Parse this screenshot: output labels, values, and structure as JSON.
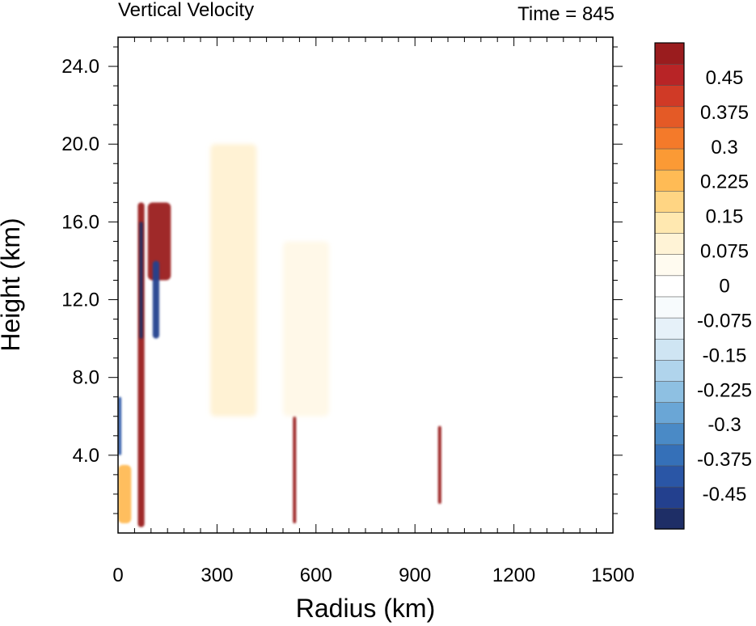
{
  "chart_data": {
    "type": "heatmap",
    "title": "Vertical Velocity",
    "time_label": "Time = 845",
    "xlabel": "Radius (km)",
    "ylabel": "Height (km)",
    "xlim": [
      0,
      1500
    ],
    "ylim": [
      0,
      25.5
    ],
    "x_ticks": [
      "0",
      "300",
      "600",
      "900",
      "1200",
      "1500"
    ],
    "x_tick_values": [
      0,
      300,
      600,
      900,
      1200,
      1500
    ],
    "y_ticks": [
      "4.0",
      "8.0",
      "12.0",
      "16.0",
      "20.0",
      "24.0"
    ],
    "y_tick_values": [
      4,
      8,
      12,
      16,
      20,
      24
    ],
    "colorbar": {
      "min": -0.525,
      "max": 0.525,
      "labels": [
        "0.45",
        "0.375",
        "0.3",
        "0.225",
        "0.15",
        "0.075",
        "0",
        "-0.075",
        "-0.15",
        "-0.225",
        "-0.3",
        "-0.375",
        "-0.45"
      ],
      "label_values": [
        0.45,
        0.375,
        0.3,
        0.225,
        0.15,
        0.075,
        0,
        -0.075,
        -0.15,
        -0.225,
        -0.3,
        -0.375,
        -0.45
      ],
      "colors": [
        "#1e2e66",
        "#23408e",
        "#2a56a6",
        "#3570b8",
        "#4a8ac6",
        "#6aa6d6",
        "#8ec0e2",
        "#b0d4ec",
        "#cfe5f3",
        "#e6f1f9",
        "#f7fbfd",
        "#ffffff",
        "#fffbf0",
        "#fff3d6",
        "#ffe8b0",
        "#ffd583",
        "#ffbb55",
        "#fb9a35",
        "#f47a2a",
        "#e45a26",
        "#d03a26",
        "#b82426",
        "#9a1c1e"
      ]
    },
    "features": [
      {
        "kind": "updraft",
        "r": [
          60,
          80
        ],
        "z": [
          0.3,
          17
        ],
        "w": 0.55,
        "note": "intense vertical updraft column near r~70 km"
      },
      {
        "kind": "downdraft",
        "r": [
          65,
          75
        ],
        "z": [
          10,
          16
        ],
        "w": -0.55
      },
      {
        "kind": "updraft",
        "r": [
          90,
          160
        ],
        "z": [
          13,
          17
        ],
        "w": 0.5
      },
      {
        "kind": "downdraft",
        "r": [
          105,
          125
        ],
        "z": [
          10,
          14
        ],
        "w": -0.45
      },
      {
        "kind": "updraft",
        "r": [
          0,
          40
        ],
        "z": [
          0.5,
          3.5
        ],
        "w": 0.25
      },
      {
        "kind": "downdraft",
        "r": [
          0,
          10
        ],
        "z": [
          4,
          7
        ],
        "w": -0.4
      },
      {
        "kind": "updraft",
        "r": [
          530,
          540
        ],
        "z": [
          0.5,
          6
        ],
        "w": 0.55
      },
      {
        "kind": "updraft",
        "r": [
          970,
          980
        ],
        "z": [
          1.5,
          5.5
        ],
        "w": 0.5
      },
      {
        "kind": "weak-updraft",
        "r": [
          280,
          420
        ],
        "z": [
          6,
          20
        ],
        "w": 0.12
      },
      {
        "kind": "weak-updraft",
        "r": [
          500,
          640
        ],
        "z": [
          6,
          15
        ],
        "w": 0.1
      }
    ]
  }
}
